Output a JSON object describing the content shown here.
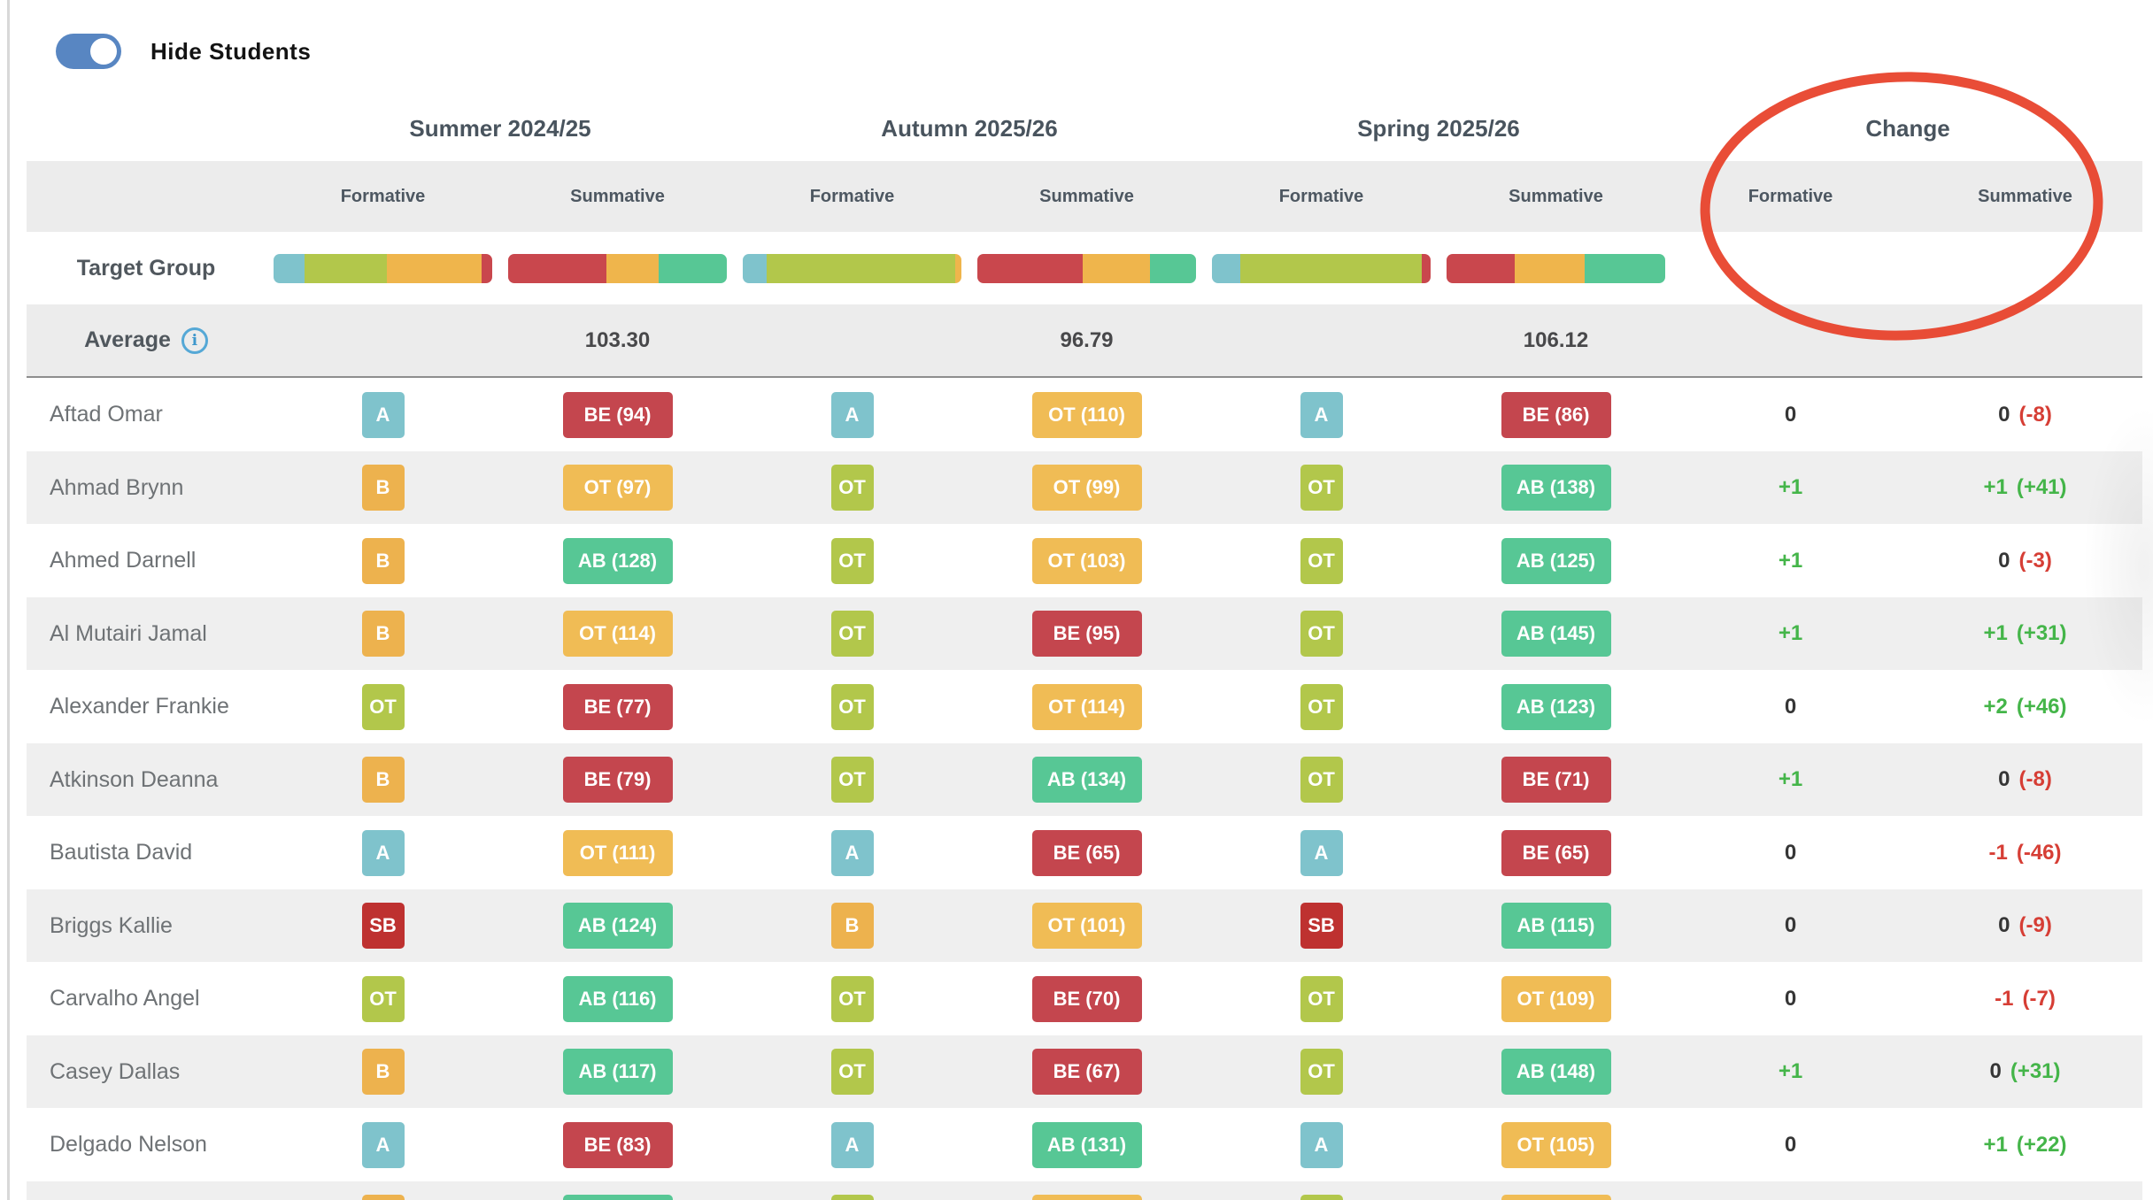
{
  "toggle": {
    "label": "Hide Students",
    "state": "on"
  },
  "columns": {
    "groups": [
      {
        "label": "Summer 2024/25",
        "subs": [
          "Formative",
          "Summative"
        ]
      },
      {
        "label": "Autumn 2025/26",
        "subs": [
          "Formative",
          "Summative"
        ]
      },
      {
        "label": "Spring 2025/26",
        "subs": [
          "Formative",
          "Summative"
        ]
      },
      {
        "label": "Change",
        "subs": [
          "Formative",
          "Summative"
        ]
      }
    ]
  },
  "target_group": {
    "label": "Target Group",
    "bars": [
      {
        "segments": [
          {
            "color": "teal",
            "pct": 14
          },
          {
            "color": "yellowgreen",
            "pct": 38
          },
          {
            "color": "orange",
            "pct": 43
          },
          {
            "color": "red",
            "pct": 5
          }
        ]
      },
      {
        "segments": [
          {
            "color": "red",
            "pct": 45
          },
          {
            "color": "orange",
            "pct": 24
          },
          {
            "color": "green",
            "pct": 31
          }
        ]
      },
      {
        "segments": [
          {
            "color": "teal",
            "pct": 11
          },
          {
            "color": "yellowgreen",
            "pct": 86
          },
          {
            "color": "orange",
            "pct": 3
          }
        ]
      },
      {
        "segments": [
          {
            "color": "red",
            "pct": 48
          },
          {
            "color": "orange",
            "pct": 31
          },
          {
            "color": "green",
            "pct": 21
          }
        ]
      },
      {
        "segments": [
          {
            "color": "teal",
            "pct": 13
          },
          {
            "color": "yellowgreen",
            "pct": 83
          },
          {
            "color": "red",
            "pct": 4
          }
        ]
      },
      {
        "segments": [
          {
            "color": "red",
            "pct": 31
          },
          {
            "color": "orange",
            "pct": 32
          },
          {
            "color": "green",
            "pct": 37
          }
        ]
      }
    ]
  },
  "average": {
    "label": "Average",
    "info_icon": "i",
    "values": [
      "103.30",
      "96.79",
      "106.12"
    ]
  },
  "students": [
    {
      "name": "Aftad Omar",
      "grades": [
        {
          "t": "A",
          "l": "A"
        },
        {
          "t": "BE",
          "l": "BE (94)"
        },
        {
          "t": "A",
          "l": "A"
        },
        {
          "t": "OT_S",
          "l": "OT (110)"
        },
        {
          "t": "A",
          "l": "A"
        },
        {
          "t": "BE",
          "l": "BE (86)"
        }
      ],
      "change_f": {
        "text": "0",
        "c": "dark"
      },
      "change_s": [
        {
          "text": "0",
          "c": "dark"
        },
        {
          "text": "(-8)",
          "c": "red"
        }
      ]
    },
    {
      "name": "Ahmad Brynn",
      "grades": [
        {
          "t": "B",
          "l": "B"
        },
        {
          "t": "OT_S",
          "l": "OT (97)"
        },
        {
          "t": "OT_F",
          "l": "OT"
        },
        {
          "t": "OT_S",
          "l": "OT (99)"
        },
        {
          "t": "OT_F",
          "l": "OT"
        },
        {
          "t": "AB",
          "l": "AB (138)"
        }
      ],
      "change_f": {
        "text": "+1",
        "c": "green"
      },
      "change_s": [
        {
          "text": "+1",
          "c": "green"
        },
        {
          "text": "(+41)",
          "c": "green"
        }
      ]
    },
    {
      "name": "Ahmed Darnell",
      "grades": [
        {
          "t": "B",
          "l": "B"
        },
        {
          "t": "AB",
          "l": "AB (128)"
        },
        {
          "t": "OT_F",
          "l": "OT"
        },
        {
          "t": "OT_S",
          "l": "OT (103)"
        },
        {
          "t": "OT_F",
          "l": "OT"
        },
        {
          "t": "AB",
          "l": "AB (125)"
        }
      ],
      "change_f": {
        "text": "+1",
        "c": "green"
      },
      "change_s": [
        {
          "text": "0",
          "c": "dark"
        },
        {
          "text": "(-3)",
          "c": "red"
        }
      ]
    },
    {
      "name": "Al Mutairi Jamal",
      "grades": [
        {
          "t": "B",
          "l": "B"
        },
        {
          "t": "OT_S",
          "l": "OT (114)"
        },
        {
          "t": "OT_F",
          "l": "OT"
        },
        {
          "t": "BE",
          "l": "BE (95)"
        },
        {
          "t": "OT_F",
          "l": "OT"
        },
        {
          "t": "AB",
          "l": "AB (145)"
        }
      ],
      "change_f": {
        "text": "+1",
        "c": "green"
      },
      "change_s": [
        {
          "text": "+1",
          "c": "green"
        },
        {
          "text": "(+31)",
          "c": "green"
        }
      ]
    },
    {
      "name": "Alexander Frankie",
      "grades": [
        {
          "t": "OT_F",
          "l": "OT"
        },
        {
          "t": "BE",
          "l": "BE (77)"
        },
        {
          "t": "OT_F",
          "l": "OT"
        },
        {
          "t": "OT_S",
          "l": "OT (114)"
        },
        {
          "t": "OT_F",
          "l": "OT"
        },
        {
          "t": "AB",
          "l": "AB (123)"
        }
      ],
      "change_f": {
        "text": "0",
        "c": "dark"
      },
      "change_s": [
        {
          "text": "+2",
          "c": "green"
        },
        {
          "text": "(+46)",
          "c": "green"
        }
      ]
    },
    {
      "name": "Atkinson Deanna",
      "grades": [
        {
          "t": "B",
          "l": "B"
        },
        {
          "t": "BE",
          "l": "BE (79)"
        },
        {
          "t": "OT_F",
          "l": "OT"
        },
        {
          "t": "AB",
          "l": "AB (134)"
        },
        {
          "t": "OT_F",
          "l": "OT"
        },
        {
          "t": "BE",
          "l": "BE (71)"
        }
      ],
      "change_f": {
        "text": "+1",
        "c": "green"
      },
      "change_s": [
        {
          "text": "0",
          "c": "dark"
        },
        {
          "text": "(-8)",
          "c": "red"
        }
      ]
    },
    {
      "name": "Bautista David",
      "grades": [
        {
          "t": "A",
          "l": "A"
        },
        {
          "t": "OT_S",
          "l": "OT (111)"
        },
        {
          "t": "A",
          "l": "A"
        },
        {
          "t": "BE",
          "l": "BE (65)"
        },
        {
          "t": "A",
          "l": "A"
        },
        {
          "t": "BE",
          "l": "BE (65)"
        }
      ],
      "change_f": {
        "text": "0",
        "c": "dark"
      },
      "change_s": [
        {
          "text": "-1",
          "c": "red"
        },
        {
          "text": "(-46)",
          "c": "red"
        }
      ]
    },
    {
      "name": "Briggs Kallie",
      "grades": [
        {
          "t": "SB",
          "l": "SB"
        },
        {
          "t": "AB",
          "l": "AB (124)"
        },
        {
          "t": "B",
          "l": "B"
        },
        {
          "t": "OT_S",
          "l": "OT (101)"
        },
        {
          "t": "SB",
          "l": "SB"
        },
        {
          "t": "AB",
          "l": "AB (115)"
        }
      ],
      "change_f": {
        "text": "0",
        "c": "dark"
      },
      "change_s": [
        {
          "text": "0",
          "c": "dark"
        },
        {
          "text": "(-9)",
          "c": "red"
        }
      ]
    },
    {
      "name": "Carvalho Angel",
      "grades": [
        {
          "t": "OT_F",
          "l": "OT"
        },
        {
          "t": "AB",
          "l": "AB (116)"
        },
        {
          "t": "OT_F",
          "l": "OT"
        },
        {
          "t": "BE",
          "l": "BE (70)"
        },
        {
          "t": "OT_F",
          "l": "OT"
        },
        {
          "t": "OT_S",
          "l": "OT (109)"
        }
      ],
      "change_f": {
        "text": "0",
        "c": "dark"
      },
      "change_s": [
        {
          "text": "-1",
          "c": "red"
        },
        {
          "text": "(-7)",
          "c": "red"
        }
      ]
    },
    {
      "name": "Casey Dallas",
      "grades": [
        {
          "t": "B",
          "l": "B"
        },
        {
          "t": "AB",
          "l": "AB (117)"
        },
        {
          "t": "OT_F",
          "l": "OT"
        },
        {
          "t": "BE",
          "l": "BE (67)"
        },
        {
          "t": "OT_F",
          "l": "OT"
        },
        {
          "t": "AB",
          "l": "AB (148)"
        }
      ],
      "change_f": {
        "text": "+1",
        "c": "green"
      },
      "change_s": [
        {
          "text": "0",
          "c": "dark"
        },
        {
          "text": "(+31)",
          "c": "green"
        }
      ]
    },
    {
      "name": "Delgado Nelson",
      "grades": [
        {
          "t": "A",
          "l": "A"
        },
        {
          "t": "BE",
          "l": "BE (83)"
        },
        {
          "t": "A",
          "l": "A"
        },
        {
          "t": "AB",
          "l": "AB (131)"
        },
        {
          "t": "A",
          "l": "A"
        },
        {
          "t": "OT_S",
          "l": "OT (105)"
        }
      ],
      "change_f": {
        "text": "0",
        "c": "dark"
      },
      "change_s": [
        {
          "text": "+1",
          "c": "green"
        },
        {
          "text": "(+22)",
          "c": "green"
        }
      ]
    }
  ],
  "partial_row": {
    "name": "",
    "grades": [
      {
        "t": "B",
        "l": ""
      },
      {
        "t": "AB",
        "l": ""
      },
      {
        "t": "OT_F",
        "l": ""
      },
      {
        "t": "OT_S",
        "l": ""
      },
      {
        "t": "OT_F",
        "l": ""
      },
      {
        "t": "OT_S",
        "l": ""
      }
    ],
    "change_f": null,
    "change_s": null
  },
  "annotation": {
    "shape": "ellipse",
    "target": "Change column"
  },
  "colors": {
    "toggle_on": "#5886C2",
    "info_icon": "#55A8D6",
    "header_text": "#49545E",
    "name_text": "#6E7275",
    "stripe": "#EFEFEF",
    "band": "#ECECEC",
    "divider": "#8E8E8E",
    "annotation": "#E8432C",
    "change_dark": "#363636",
    "change_green": "#44B549",
    "change_red": "#D63E35",
    "grades": {
      "A": "#7FC3CC",
      "B": "#EDB24E",
      "OT_F": "#B2C74B",
      "SB": "#BE3130",
      "BE": "#C4464E",
      "OT_S": "#F0BC55",
      "AB": "#57C795"
    },
    "bars": {
      "teal": "#7FC3CC",
      "yellowgreen": "#B2C74B",
      "orange": "#EFB54C",
      "red": "#C9474D",
      "green": "#57C795"
    }
  }
}
